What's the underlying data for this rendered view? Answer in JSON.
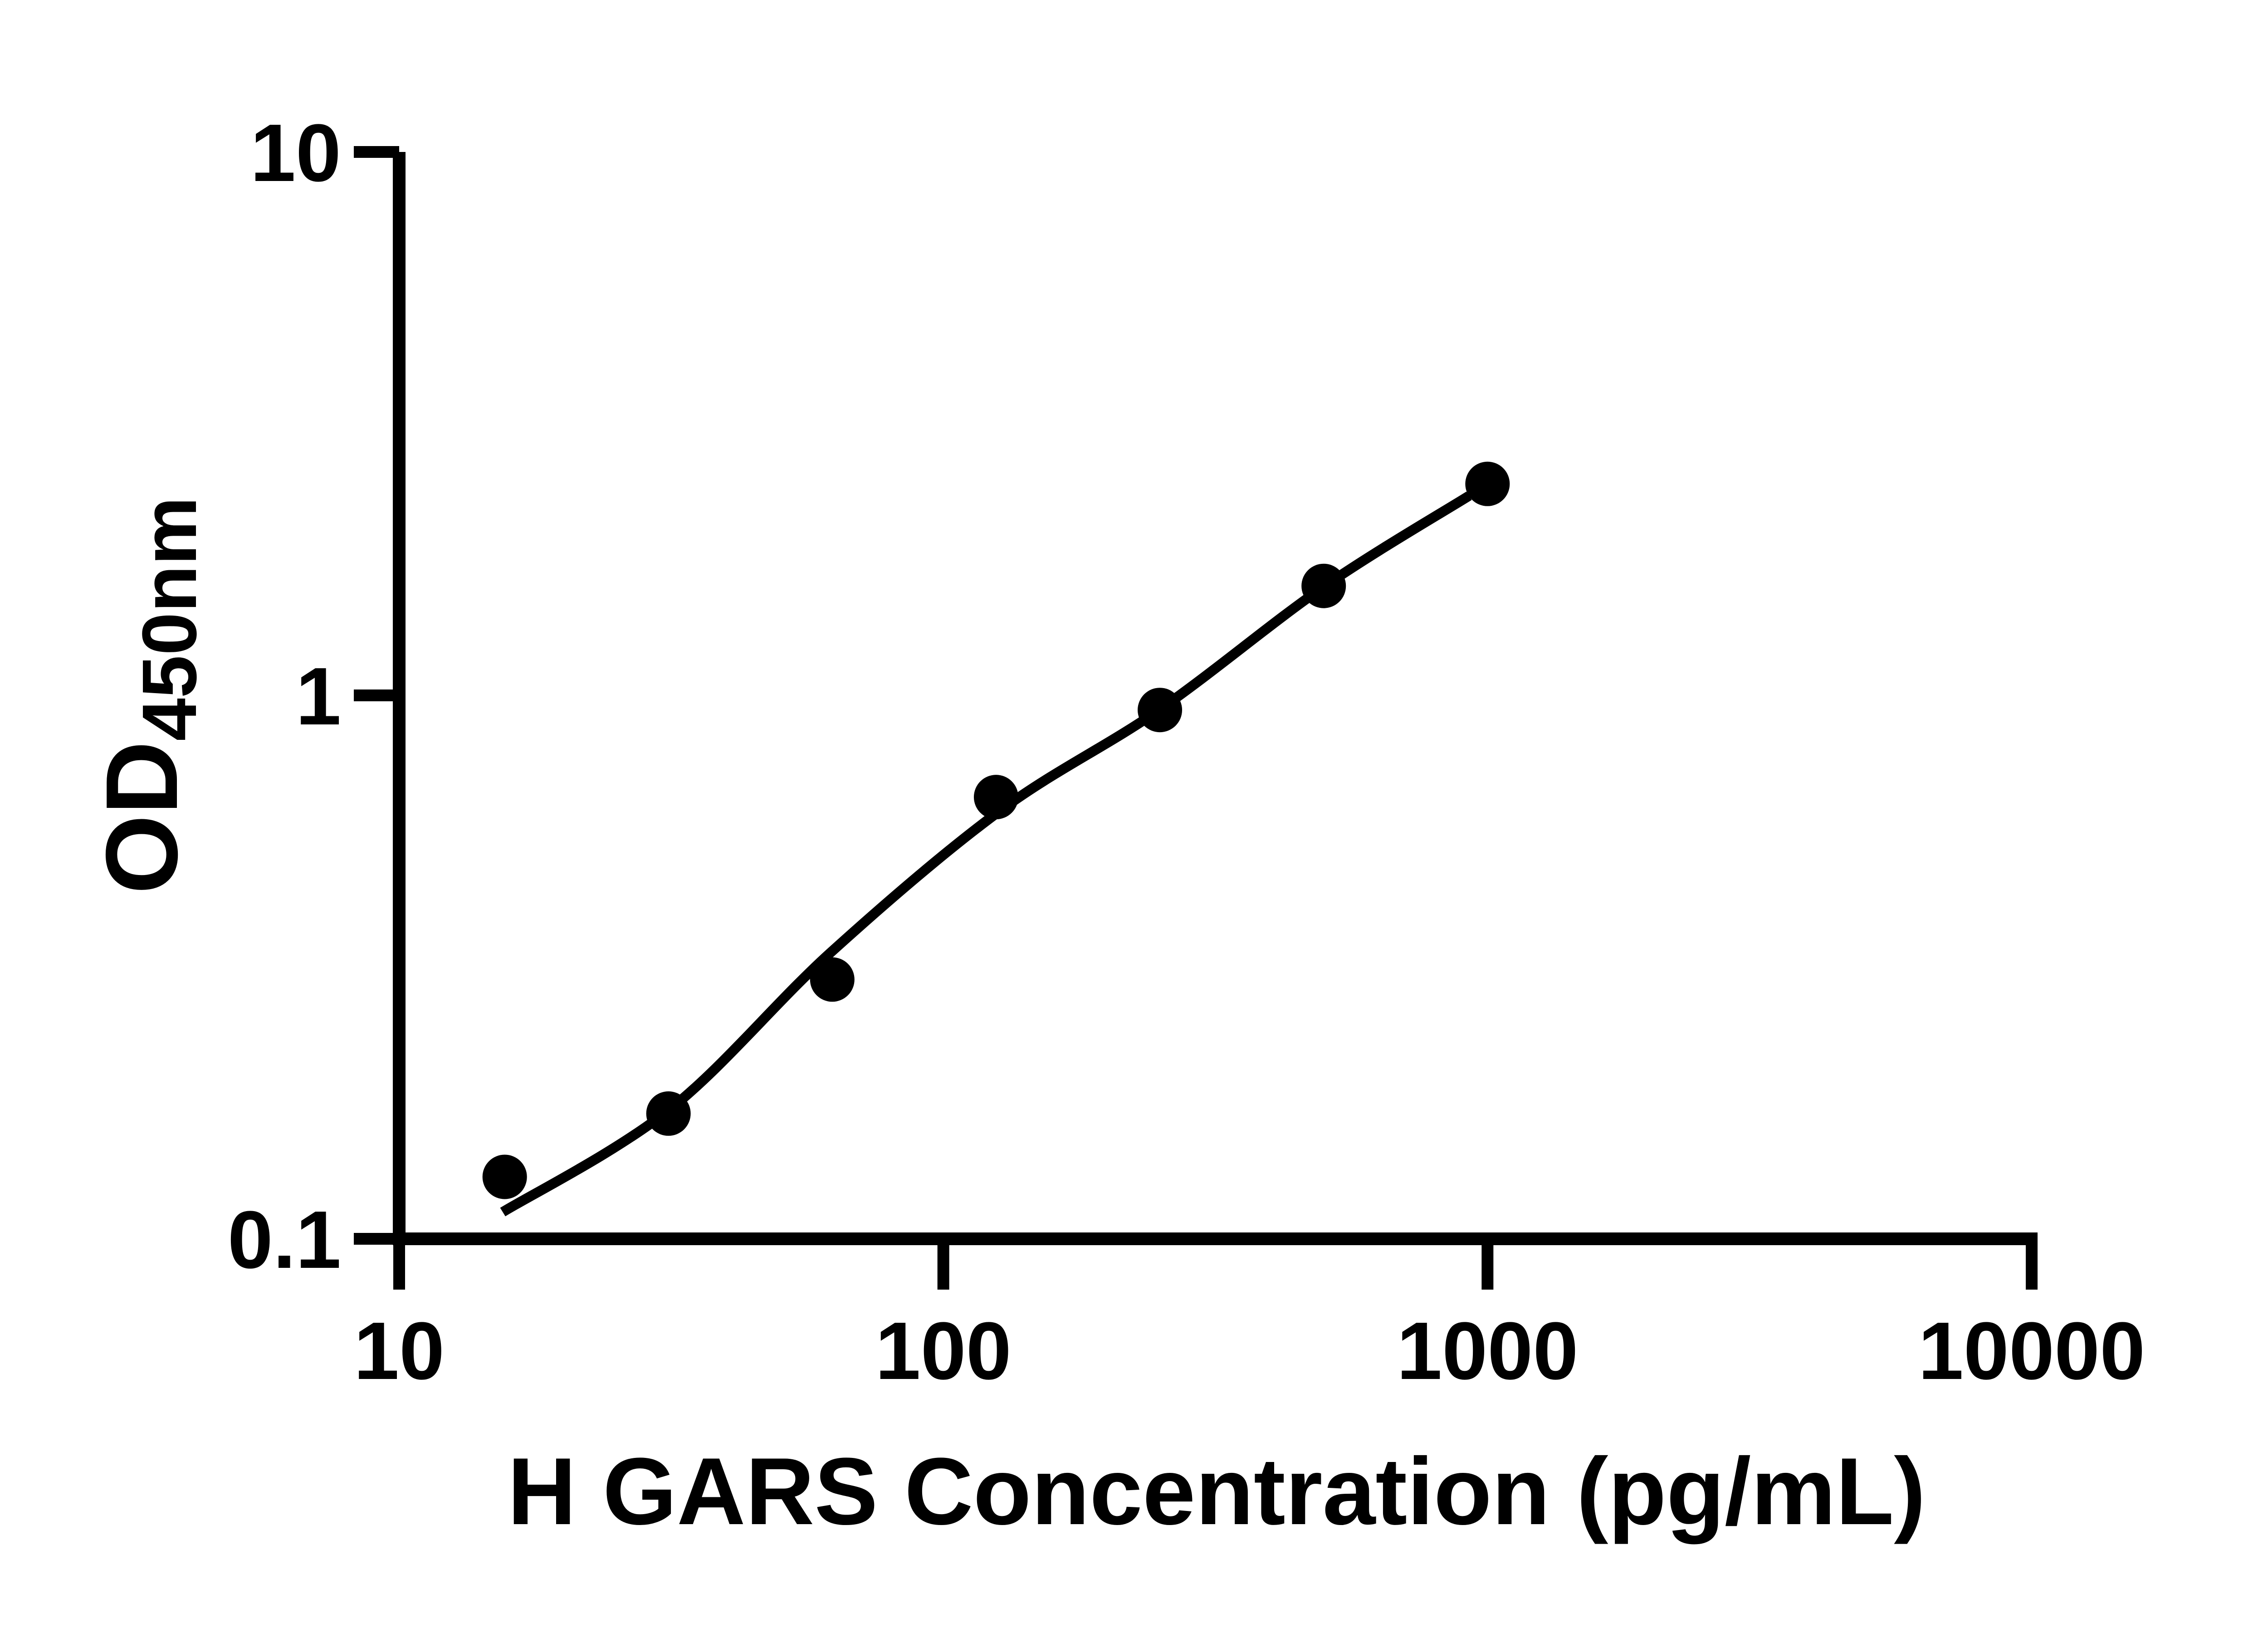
{
  "figure": {
    "background_color": "#ffffff",
    "ink_color": "#000000"
  },
  "chart_data": {
    "type": "scatter",
    "title": "",
    "xlabel": "H GARS Concentration (pg/mL)",
    "ylabel_main": "OD",
    "ylabel_sub": "450nm",
    "x_scale": "log10",
    "y_scale": "log10",
    "xlim": [
      10,
      10000
    ],
    "ylim": [
      0.1,
      10
    ],
    "x_ticks": [
      10,
      100,
      1000,
      10000
    ],
    "x_tick_labels": [
      "10",
      "100",
      "1000",
      "10000"
    ],
    "y_ticks": [
      0.1,
      1,
      10
    ],
    "y_tick_labels": [
      "0.1",
      "1",
      "10"
    ],
    "grid": false,
    "legend": "none",
    "marker_color": "#000000",
    "line_color": "#000000",
    "series": [
      {
        "name": "standard-points",
        "type": "scatter",
        "marker": "filled-circle",
        "x": [
          15.63,
          31.25,
          62.5,
          125,
          250,
          500,
          1000
        ],
        "y": [
          0.13,
          0.17,
          0.3,
          0.65,
          0.94,
          1.59,
          2.45
        ]
      },
      {
        "name": "fit-curve",
        "type": "line",
        "x": [
          15.5,
          31.4,
          62,
          127,
          249,
          498,
          925
        ],
        "y": [
          0.112,
          0.173,
          0.336,
          0.613,
          0.94,
          1.58,
          2.33
        ]
      }
    ]
  }
}
